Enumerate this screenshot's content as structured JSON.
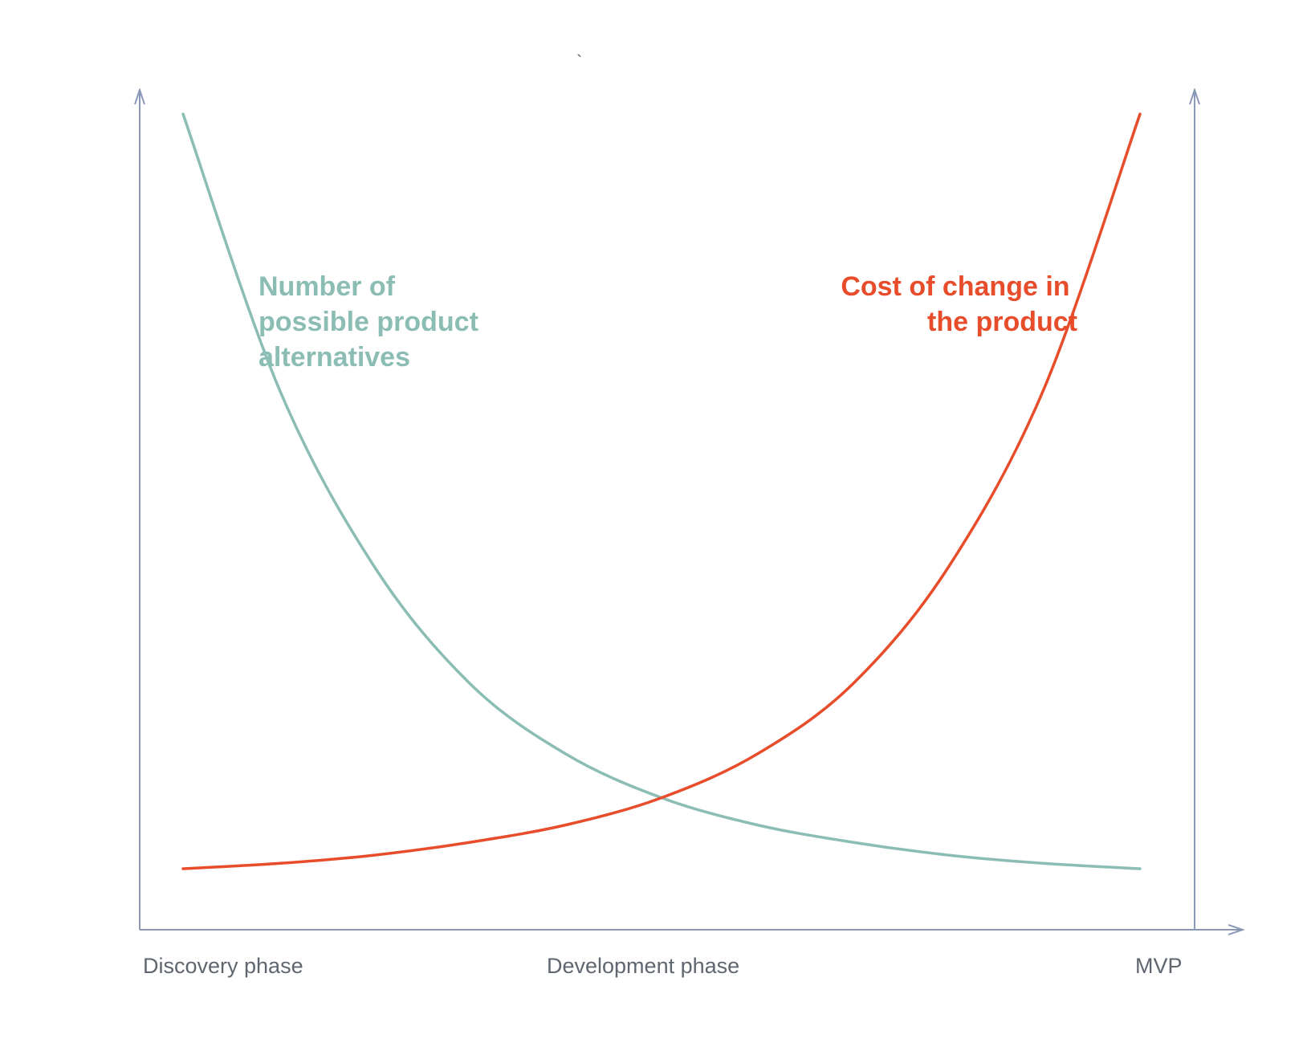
{
  "colors": {
    "axis": "#8a98b8",
    "alternatives": "#8bbdb5",
    "cost": "#e84d2b",
    "tick_text": "#5f6670"
  },
  "stray_mark": "`",
  "chart_data": {
    "type": "line",
    "title": "",
    "xlabel": "",
    "ylabel": "",
    "x_tick_labels": [
      "Discovery phase",
      "Development phase",
      "MVP"
    ],
    "x": [
      0,
      0.1,
      0.2,
      0.3,
      0.4,
      0.5,
      0.6,
      0.7,
      0.8,
      0.9,
      1.0
    ],
    "ylim": [
      0,
      1
    ],
    "grid": false,
    "legend": "none",
    "series": [
      {
        "name": "Number of possible product alternatives",
        "label_lines": [
          "Number of",
          "possible product",
          "alternatives"
        ],
        "color": "#8bbdb5",
        "values": [
          1.0,
          0.637,
          0.4,
          0.245,
          0.152,
          0.094,
          0.058,
          0.035,
          0.018,
          0.007,
          0.0
        ]
      },
      {
        "name": "Cost of change in the product",
        "label_lines": [
          "Cost of change in",
          "the product"
        ],
        "color": "#e84d2b",
        "values": [
          0.0,
          0.007,
          0.018,
          0.035,
          0.058,
          0.094,
          0.152,
          0.245,
          0.4,
          0.637,
          1.0
        ]
      }
    ]
  }
}
